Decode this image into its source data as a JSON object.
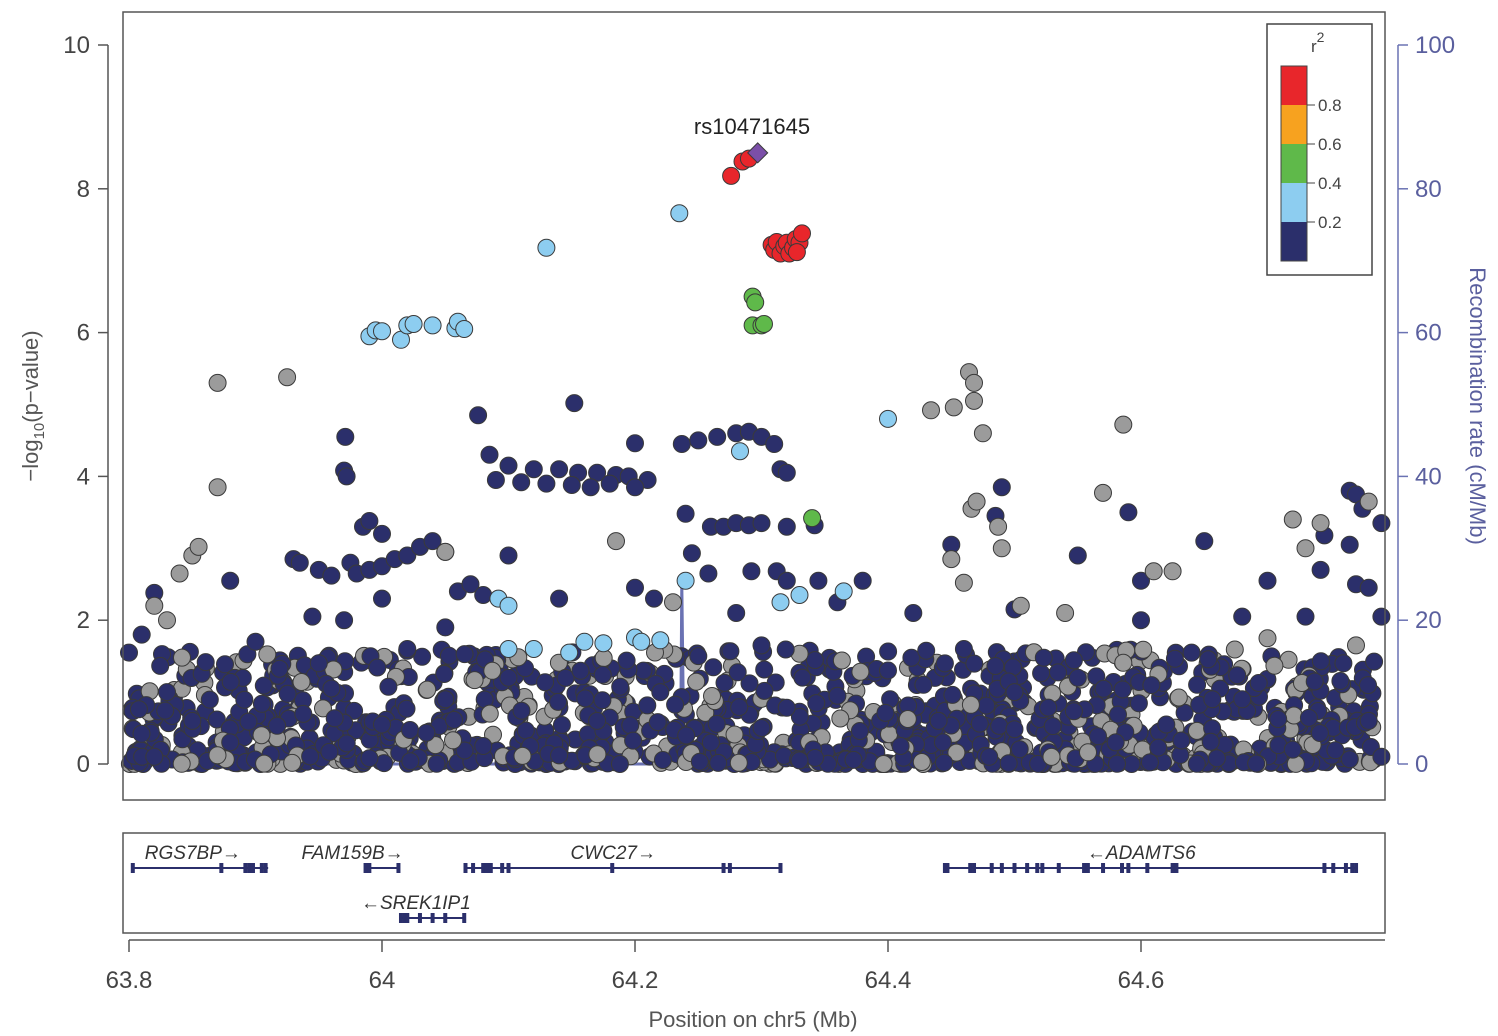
{
  "chart_data": {
    "type": "scatter",
    "xlabel": "Position on chr5 (Mb)",
    "ylabel": "-log10(p-value)",
    "ylabel_parts": {
      "prefix": "−log",
      "sub": "10",
      "suffix": "(p−value)"
    },
    "y2label": "Recombination rate (cM/Mb)",
    "xlim": [
      63.8,
      64.79
    ],
    "ylim": [
      -0.5,
      10.5
    ],
    "y2lim": [
      -5,
      105
    ],
    "x_ticks": [
      63.8,
      64,
      64.2,
      64.4,
      64.6
    ],
    "x_tick_labels": [
      "63.8",
      "64",
      "64.2",
      "64.4",
      "64.6"
    ],
    "y_ticks": [
      0,
      2,
      4,
      6,
      8,
      10
    ],
    "y_tick_labels": [
      "0",
      "2",
      "4",
      "6",
      "8",
      "10"
    ],
    "y2_ticks": [
      0,
      20,
      40,
      60,
      80,
      100
    ],
    "y2_tick_labels": [
      "0",
      "20",
      "40",
      "60",
      "80",
      "100"
    ],
    "lead_snp": {
      "label": "rs10471645",
      "x": 64.297,
      "y": 8.5,
      "color": "#7b4fa8"
    },
    "legend": {
      "title": "r",
      "title_sup": "2",
      "placement": "top-right",
      "labels": [
        "0.8",
        "0.6",
        "0.4",
        "0.2"
      ],
      "colors": [
        "#e8262b",
        "#f7a21f",
        "#5fb94a",
        "#8dcdf0",
        "#2b2f6b"
      ]
    },
    "colors": {
      "na": "#9b9b9b",
      "low": "#2b2f6b",
      "r02": "#8dcdf0",
      "r04": "#5fb94a",
      "r06": "#f7a21f",
      "r08": "#e8262b",
      "recomb": "#6a72b3"
    },
    "series": [
      {
        "r2": "0.8-1.0",
        "color": "#e8262b",
        "points": [
          [
            64.276,
            8.18
          ],
          [
            64.285,
            8.38
          ],
          [
            64.29,
            8.42
          ],
          [
            64.308,
            7.22
          ],
          [
            64.31,
            7.15
          ],
          [
            64.312,
            7.26
          ],
          [
            64.315,
            7.1
          ],
          [
            64.318,
            7.2
          ],
          [
            64.32,
            7.25
          ],
          [
            64.322,
            7.1
          ],
          [
            64.325,
            7.18
          ],
          [
            64.327,
            7.3
          ],
          [
            64.33,
            7.25
          ],
          [
            64.332,
            7.38
          ],
          [
            64.328,
            7.12
          ]
        ]
      },
      {
        "r2": "0.4-0.6",
        "color": "#5fb94a",
        "points": [
          [
            64.293,
            6.5
          ],
          [
            64.295,
            6.42
          ],
          [
            64.293,
            6.1
          ],
          [
            64.3,
            6.1
          ],
          [
            64.302,
            6.12
          ],
          [
            64.34,
            3.42
          ]
        ]
      },
      {
        "r2": "0.2-0.4",
        "color": "#8dcdf0",
        "points": [
          [
            64.13,
            7.18
          ],
          [
            64.235,
            7.66
          ],
          [
            63.99,
            5.95
          ],
          [
            63.995,
            6.03
          ],
          [
            64.0,
            6.02
          ],
          [
            64.015,
            5.9
          ],
          [
            64.02,
            6.1
          ],
          [
            64.025,
            6.12
          ],
          [
            64.04,
            6.1
          ],
          [
            64.058,
            6.06
          ],
          [
            64.06,
            6.15
          ],
          [
            64.065,
            6.05
          ],
          [
            64.283,
            4.35
          ],
          [
            64.4,
            4.8
          ],
          [
            64.092,
            2.3
          ],
          [
            64.1,
            2.2
          ],
          [
            64.24,
            2.55
          ],
          [
            64.315,
            2.25
          ],
          [
            64.33,
            2.35
          ],
          [
            64.365,
            2.4
          ],
          [
            64.1,
            1.6
          ],
          [
            64.12,
            1.6
          ],
          [
            64.148,
            1.55
          ],
          [
            64.16,
            1.7
          ],
          [
            64.175,
            1.68
          ],
          [
            64.2,
            1.76
          ],
          [
            64.205,
            1.7
          ],
          [
            64.22,
            1.72
          ]
        ]
      },
      {
        "r2": "NA",
        "color": "#9b9b9b",
        "points": [
          [
            63.87,
            5.3
          ],
          [
            63.925,
            5.38
          ],
          [
            63.87,
            3.85
          ],
          [
            64.464,
            5.45
          ],
          [
            64.468,
            5.3
          ],
          [
            64.452,
            4.96
          ],
          [
            64.434,
            4.92
          ],
          [
            64.468,
            5.05
          ],
          [
            64.475,
            4.6
          ],
          [
            64.586,
            4.72
          ],
          [
            64.57,
            3.77
          ],
          [
            63.82,
            2.2
          ],
          [
            63.84,
            2.65
          ],
          [
            63.85,
            2.9
          ],
          [
            63.855,
            3.02
          ],
          [
            63.83,
            2.0
          ],
          [
            64.05,
            2.95
          ],
          [
            64.185,
            3.1
          ],
          [
            64.23,
            2.25
          ],
          [
            64.45,
            2.85
          ],
          [
            64.466,
            3.55
          ],
          [
            64.47,
            3.65
          ],
          [
            64.487,
            3.3
          ],
          [
            64.49,
            3.0
          ],
          [
            64.72,
            3.4
          ],
          [
            64.742,
            3.35
          ],
          [
            64.78,
            3.65
          ],
          [
            64.73,
            3.0
          ],
          [
            64.505,
            2.2
          ],
          [
            64.54,
            2.1
          ],
          [
            64.61,
            2.68
          ],
          [
            64.625,
            2.68
          ],
          [
            64.46,
            2.52
          ],
          [
            64.77,
            1.65
          ],
          [
            64.7,
            1.75
          ]
        ]
      },
      {
        "r2": "0.0-0.2",
        "color": "#2b2f6b",
        "points": [
          [
            64.076,
            4.85
          ],
          [
            64.152,
            5.02
          ],
          [
            63.971,
            4.55
          ],
          [
            63.97,
            4.08
          ],
          [
            63.972,
            4.0
          ],
          [
            64.2,
            4.46
          ],
          [
            64.21,
            3.95
          ],
          [
            64.237,
            4.45
          ],
          [
            64.25,
            4.5
          ],
          [
            64.265,
            4.55
          ],
          [
            64.28,
            4.6
          ],
          [
            64.29,
            4.62
          ],
          [
            64.3,
            4.55
          ],
          [
            64.31,
            4.45
          ],
          [
            64.315,
            4.1
          ],
          [
            64.32,
            4.05
          ],
          [
            64.085,
            4.3
          ],
          [
            64.1,
            4.15
          ],
          [
            64.12,
            4.1
          ],
          [
            64.14,
            4.1
          ],
          [
            64.155,
            4.05
          ],
          [
            64.17,
            4.05
          ],
          [
            64.185,
            4.02
          ],
          [
            64.195,
            4.0
          ],
          [
            64.09,
            3.95
          ],
          [
            64.11,
            3.92
          ],
          [
            64.13,
            3.9
          ],
          [
            64.15,
            3.88
          ],
          [
            64.165,
            3.85
          ],
          [
            64.18,
            3.9
          ],
          [
            64.2,
            3.85
          ],
          [
            63.985,
            3.3
          ],
          [
            63.99,
            3.38
          ],
          [
            64.0,
            3.2
          ],
          [
            64.24,
            3.48
          ],
          [
            64.26,
            3.3
          ],
          [
            64.27,
            3.3
          ],
          [
            64.28,
            3.35
          ],
          [
            64.29,
            3.32
          ],
          [
            64.3,
            3.35
          ],
          [
            64.32,
            3.3
          ],
          [
            64.342,
            3.32
          ],
          [
            64.485,
            3.45
          ],
          [
            64.49,
            3.85
          ],
          [
            64.59,
            3.5
          ],
          [
            64.765,
            3.8
          ],
          [
            64.77,
            3.75
          ],
          [
            64.775,
            3.55
          ],
          [
            64.79,
            3.35
          ],
          [
            64.745,
            3.18
          ],
          [
            64.765,
            3.05
          ],
          [
            63.93,
            2.85
          ],
          [
            63.935,
            2.8
          ],
          [
            63.95,
            2.7
          ],
          [
            63.96,
            2.62
          ],
          [
            63.975,
            2.8
          ],
          [
            63.98,
            2.65
          ],
          [
            63.99,
            2.7
          ],
          [
            64.0,
            2.75
          ],
          [
            64.01,
            2.85
          ],
          [
            64.02,
            2.9
          ],
          [
            64.03,
            3.02
          ],
          [
            64.04,
            3.1
          ],
          [
            64.05,
            2.95
          ],
          [
            64.06,
            2.4
          ],
          [
            64.07,
            2.5
          ],
          [
            64.08,
            2.35
          ],
          [
            64.1,
            2.9
          ],
          [
            64.245,
            2.93
          ],
          [
            64.258,
            2.65
          ],
          [
            64.292,
            2.68
          ],
          [
            64.312,
            2.68
          ],
          [
            64.32,
            2.55
          ],
          [
            64.345,
            2.55
          ],
          [
            64.38,
            2.55
          ],
          [
            64.45,
            3.05
          ],
          [
            64.55,
            2.9
          ],
          [
            64.6,
            2.55
          ],
          [
            64.65,
            3.1
          ],
          [
            64.7,
            2.55
          ],
          [
            64.742,
            2.7
          ],
          [
            64.77,
            2.5
          ],
          [
            64.78,
            2.45
          ],
          [
            63.82,
            2.38
          ],
          [
            63.88,
            2.55
          ],
          [
            63.945,
            2.05
          ],
          [
            63.97,
            2.0
          ],
          [
            64.0,
            2.3
          ],
          [
            64.05,
            1.9
          ],
          [
            64.14,
            2.3
          ],
          [
            64.2,
            2.45
          ],
          [
            64.215,
            2.3
          ],
          [
            64.28,
            2.1
          ],
          [
            64.36,
            2.25
          ],
          [
            64.42,
            2.1
          ],
          [
            64.5,
            2.15
          ],
          [
            64.6,
            2.0
          ],
          [
            64.68,
            2.05
          ],
          [
            64.73,
            2.05
          ],
          [
            64.79,
            2.05
          ],
          [
            63.81,
            1.8
          ],
          [
            63.9,
            1.7
          ],
          [
            64.02,
            1.6
          ],
          [
            64.25,
            1.5
          ],
          [
            64.3,
            1.65
          ],
          [
            64.46,
            1.6
          ],
          [
            64.64,
            1.55
          ],
          [
            63.8,
            1.55
          ],
          [
            63.95,
            1.4
          ],
          [
            64.1,
            1.2
          ],
          [
            64.4,
            1.3
          ],
          [
            64.55,
            1.2
          ],
          [
            64.76,
            1.4
          ],
          [
            63.83,
            1.0
          ],
          [
            63.96,
            1.05
          ],
          [
            64.05,
            0.9
          ],
          [
            64.22,
            1.0
          ],
          [
            64.36,
            0.95
          ],
          [
            64.5,
            1.0
          ],
          [
            64.68,
            0.9
          ],
          [
            63.85,
            0.6
          ],
          [
            64.0,
            0.55
          ],
          [
            64.17,
            0.6
          ],
          [
            64.3,
            0.5
          ],
          [
            64.44,
            0.6
          ],
          [
            64.62,
            0.55
          ],
          [
            64.78,
            0.6
          ],
          [
            63.88,
            0.3
          ],
          [
            64.08,
            0.25
          ],
          [
            64.26,
            0.3
          ],
          [
            64.41,
            0.25
          ],
          [
            64.58,
            0.3
          ],
          [
            64.72,
            0.2
          ],
          [
            63.82,
            0.1
          ],
          [
            63.99,
            0.08
          ],
          [
            64.14,
            0.12
          ],
          [
            64.33,
            0.05
          ],
          [
            64.48,
            0.1
          ],
          [
            64.66,
            0.08
          ],
          [
            64.79,
            0.1
          ]
        ]
      }
    ],
    "recombination": [
      [
        63.8,
        0
      ],
      [
        64.236,
        0
      ],
      [
        64.237,
        25
      ],
      [
        64.238,
        10
      ],
      [
        64.239,
        0
      ],
      [
        64.79,
        0
      ]
    ],
    "genes": [
      {
        "name": "RGS7BP",
        "label": "RGS7BP→",
        "start": 63.803,
        "end": 63.91,
        "row": 0,
        "exons": [
          63.803,
          63.873,
          63.892,
          63.895,
          63.898,
          63.905,
          63.908
        ]
      },
      {
        "name": "FAM159B",
        "label": "FAM159B→",
        "start": 63.987,
        "end": 64.013,
        "row": 0,
        "exons": [
          63.987,
          63.99,
          64.013
        ]
      },
      {
        "name": "CWC27",
        "label": "CWC27→",
        "start": 64.066,
        "end": 64.315,
        "row": 0,
        "exons": [
          64.066,
          64.072,
          64.08,
          64.083,
          64.086,
          64.095,
          64.1,
          64.182,
          64.27,
          64.275,
          64.315
        ]
      },
      {
        "name": "ADAMTS6",
        "label": "←ADAMTS6",
        "start": 64.445,
        "end": 64.77,
        "row": 0,
        "exons": [
          64.445,
          64.447,
          64.465,
          64.468,
          64.482,
          64.49,
          64.5,
          64.51,
          64.518,
          64.522,
          64.535,
          64.555,
          64.558,
          64.57,
          64.585,
          64.59,
          64.605,
          64.625,
          64.628,
          64.745,
          64.752,
          64.762,
          64.767,
          64.77
        ]
      },
      {
        "name": "SREK1IP1",
        "label": "←SREK1IP1",
        "start": 64.015,
        "end": 64.065,
        "row": 1,
        "exons": [
          64.015,
          64.018,
          64.02,
          64.03,
          64.04,
          64.05,
          64.065
        ]
      }
    ]
  }
}
